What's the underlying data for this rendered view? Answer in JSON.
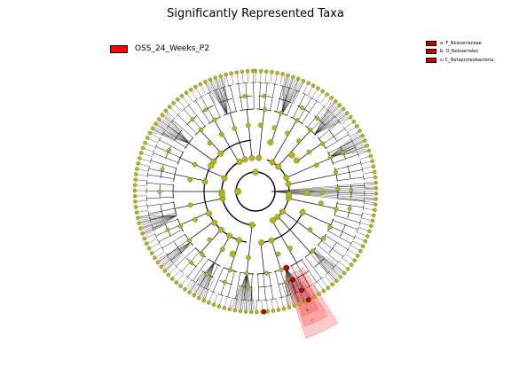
{
  "title": "Significantly Represented Taxa",
  "class_legend": {
    "label": "OSS_24_Weeks_P2",
    "color": "#ff0000"
  },
  "clade_legend": [
    {
      "label": "a: F_Neisseriaceae",
      "color": "#cc0000"
    },
    {
      "label": "b: O_Neisseriales",
      "color": "#cc0000"
    },
    {
      "label": "c: C_Betaproteobacteria",
      "color": "#cc0000"
    }
  ],
  "highlight_labels": [
    "a",
    "b",
    "c"
  ],
  "colors": {
    "node": "#b5b51a",
    "node_highlight": "#cc0000",
    "edge": "#000000",
    "highlight_fill": "#ff4040"
  }
}
